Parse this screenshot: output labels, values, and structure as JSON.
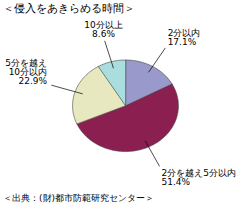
{
  "chart_data": {
    "type": "pie",
    "title": "＜侵入をあきらめる時間＞",
    "source": "＜出典：(財)都市防範研究センター＞",
    "categories": [
      "2分以内",
      "2分を越え5分以内",
      "5分を越え\n10分以内",
      "10分以上"
    ],
    "values": [
      17.1,
      51.4,
      22.9,
      8.6
    ],
    "value_labels": [
      "17.1%",
      "51.4%",
      "22.9%",
      "8.6%"
    ],
    "colors": [
      "#9999cc",
      "#8b2050",
      "#e8e8c0",
      "#aadddd"
    ],
    "data_labels": true
  }
}
